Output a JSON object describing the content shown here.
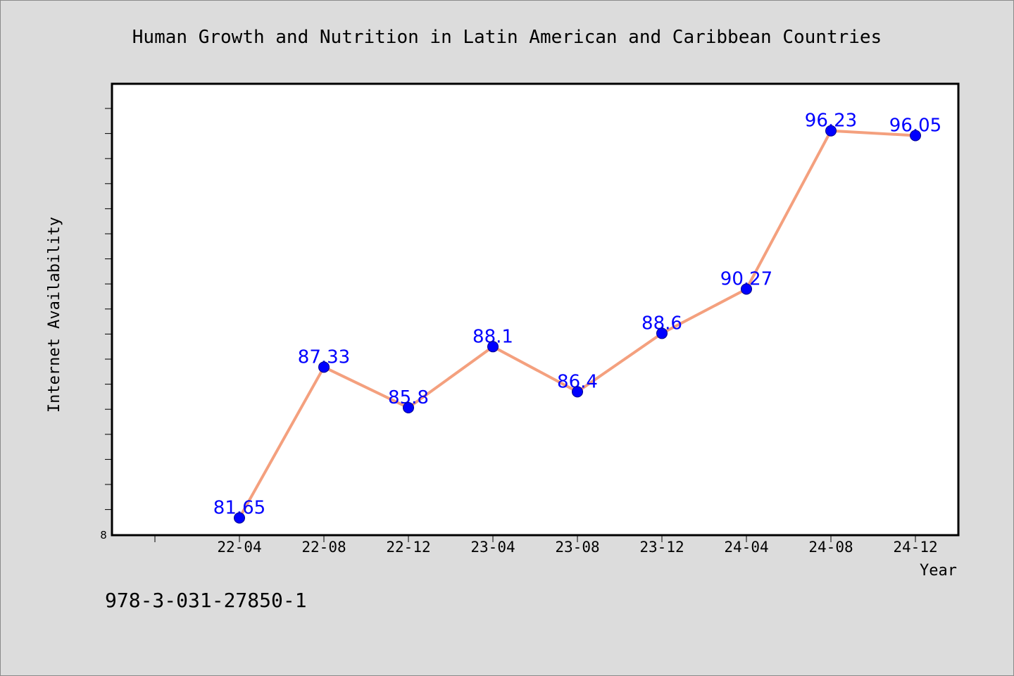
{
  "chart_data": {
    "type": "line",
    "title": "Human Growth and Nutrition in Latin American and Caribbean Countries",
    "xlabel": "Year",
    "ylabel": "Internet Availability",
    "categories": [
      "22-04",
      "22-08",
      "22-12",
      "23-04",
      "23-08",
      "23-12",
      "24-04",
      "24-08",
      "24-12"
    ],
    "series": [
      {
        "values": [
          81.65,
          87.33,
          85.8,
          88.1,
          86.4,
          88.6,
          90.27,
          96.23,
          96.05
        ],
        "data_labels": [
          "81.65",
          "87.33",
          "85.8",
          "88.1",
          "86.4",
          "88.6",
          "90.27",
          "96.23",
          "96.05"
        ],
        "line_color": "#f4a07e",
        "marker_color": "#0000ff",
        "label_color": "#0000ff"
      }
    ],
    "y_tick_label": "8",
    "ylim": [
      81.0,
      98.0
    ],
    "grid": false,
    "legend": "none"
  },
  "footer": {
    "isbn": "978-3-031-27850-1"
  },
  "colors": {
    "background": "#dcdcdc",
    "plot_background": "#ffffff",
    "axis": "#000000"
  }
}
